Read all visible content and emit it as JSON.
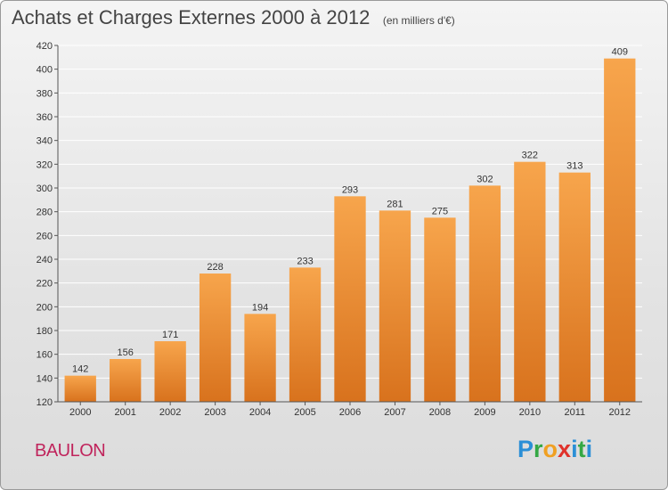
{
  "header": {
    "title": "Achats et Charges Externes 2000 à 2012",
    "subtitle": "(en milliers d'€)"
  },
  "footer": {
    "commune": "BAULON",
    "brand": "Proxiti"
  },
  "colors": {
    "bar_top": "#f7a54c",
    "bar_bottom": "#d8721d",
    "commune_text": "#c0245c"
  },
  "chart_data": {
    "type": "bar",
    "title": "Achats et Charges Externes 2000 à 2012",
    "subtitle": "(en milliers d'€)",
    "xlabel": "",
    "ylabel": "",
    "categories": [
      "2000",
      "2001",
      "2002",
      "2003",
      "2004",
      "2005",
      "2006",
      "2007",
      "2008",
      "2009",
      "2010",
      "2011",
      "2012"
    ],
    "values": [
      142,
      156,
      171,
      228,
      194,
      233,
      293,
      281,
      275,
      302,
      322,
      313,
      409
    ],
    "ylim": [
      120,
      420
    ],
    "yticks": [
      120,
      140,
      160,
      180,
      200,
      220,
      240,
      260,
      280,
      300,
      320,
      340,
      360,
      380,
      400,
      420
    ],
    "grid": true,
    "legend": "none"
  }
}
